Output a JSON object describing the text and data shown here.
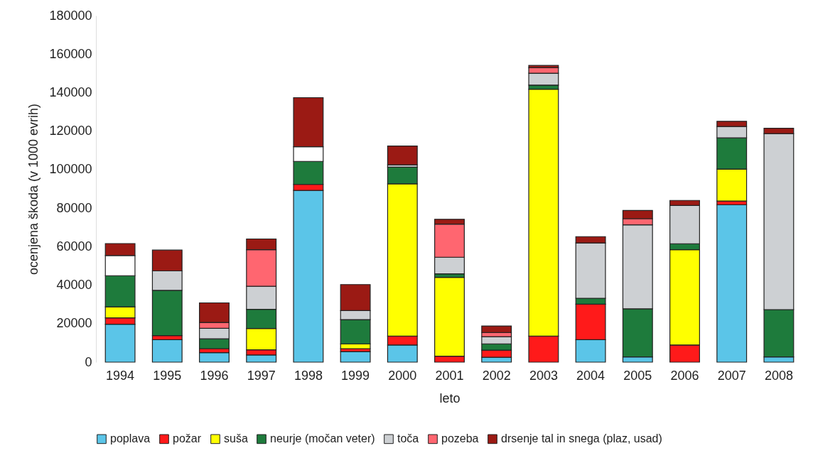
{
  "chart_data": {
    "type": "bar",
    "stacked": true,
    "xlabel": "leto",
    "ylabel": "ocenjena škoda (v 1000 evrih)",
    "categories": [
      "1994",
      "1995",
      "1996",
      "1997",
      "1998",
      "1999",
      "2000",
      "2001",
      "2002",
      "2003",
      "2004",
      "2005",
      "2006",
      "2007",
      "2008"
    ],
    "ylim": [
      0,
      180000
    ],
    "yticks": [
      0,
      20000,
      40000,
      60000,
      80000,
      100000,
      120000,
      140000,
      160000,
      180000
    ],
    "grid": false,
    "legend": "bottom",
    "series": [
      {
        "name": "poplava",
        "color": "#5bc5e8",
        "values": [
          19700,
          11700,
          4900,
          3700,
          89200,
          5500,
          8900,
          null,
          2500,
          null,
          11700,
          2700,
          null,
          81800,
          2700
        ]
      },
      {
        "name": "požar",
        "color": "#ff1a1a",
        "values": [
          3300,
          2100,
          2100,
          2700,
          3100,
          1500,
          4600,
          3100,
          3700,
          13500,
          18400,
          null,
          8900,
          1900,
          null
        ]
      },
      {
        "name": "suša",
        "color": "#ffff00",
        "values": [
          5700,
          null,
          null,
          11100,
          null,
          2500,
          79100,
          40900,
          null,
          128300,
          null,
          null,
          49500,
          16600,
          null
        ]
      },
      {
        "name": "neurje (močan veter)",
        "color": "#1e7b3c",
        "values": [
          16200,
          23500,
          5100,
          9900,
          12000,
          12600,
          8700,
          1900,
          3300,
          2100,
          3100,
          25000,
          3100,
          16200,
          24600
        ]
      },
      {
        "name": "toča",
        "color": "#cdd0d3",
        "values": [
          null,
          10100,
          5500,
          12000,
          null,
          4700,
          1200,
          8600,
          3700,
          6200,
          28700,
          43600,
          19900,
          5900,
          91400
        ]
      },
      {
        "name": "pozeba",
        "color": "#ff6670",
        "values": [
          null,
          null,
          3000,
          19000,
          null,
          null,
          null,
          17200,
          2200,
          2800,
          null,
          3200,
          null,
          null,
          null
        ]
      },
      {
        "color": "#ffffff",
        "values": [
          10500,
          null,
          null,
          null,
          7600,
          null,
          null,
          null,
          null,
          null,
          null,
          null,
          null,
          null,
          null
        ]
      },
      {
        "name": "drsenje tal in snega (plaz, usad)",
        "color": "#9b1a14",
        "values": [
          6200,
          10800,
          10200,
          5600,
          25500,
          13500,
          9800,
          2500,
          3400,
          1200,
          3300,
          4300,
          2600,
          2700,
          2800
        ]
      }
    ]
  }
}
